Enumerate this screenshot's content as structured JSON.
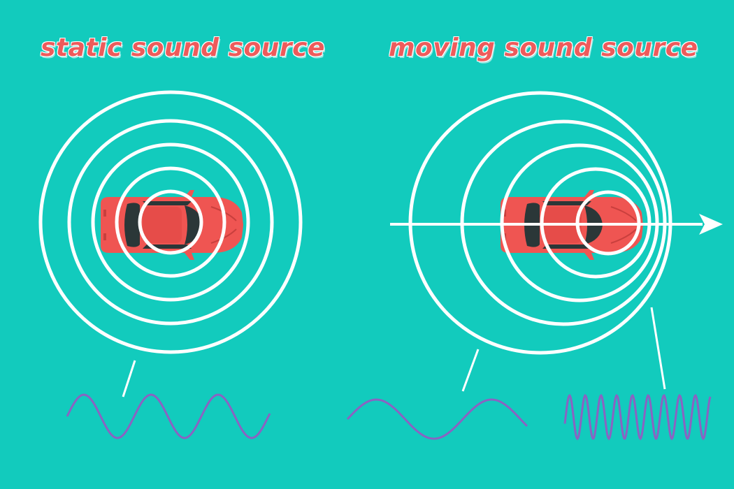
{
  "titles": {
    "static": "static sound source",
    "moving": "moving sound source"
  },
  "colors": {
    "background": "#12cbbd",
    "title": "#ee5b5b",
    "car_body": "#ef5552",
    "car_glass": "#2b3738",
    "wave_rings": "#ffffff",
    "sound_wave": "#8a63c2"
  },
  "panels": {
    "static": {
      "icon": "car-top-view-icon",
      "wave_labels": [
        "normal-frequency-wave"
      ]
    },
    "moving": {
      "icon": "car-top-view-icon",
      "direction_icon": "arrow-right-icon",
      "wave_labels": [
        "low-frequency-wave-behind",
        "high-frequency-wave-ahead"
      ]
    }
  }
}
